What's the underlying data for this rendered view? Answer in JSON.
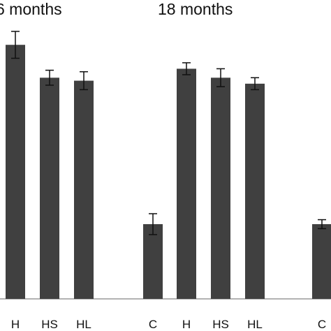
{
  "chart_data": {
    "type": "bar",
    "group_titles": [
      "6 months",
      "18 months"
    ],
    "categories": [
      "H",
      "HS",
      "HL",
      "C",
      "H",
      "HS",
      "HL",
      "C"
    ],
    "values": [
      85,
      74,
      73,
      25,
      77,
      74,
      72,
      25
    ],
    "errors": [
      4.5,
      2.5,
      3.0,
      3.5,
      2.0,
      3.0,
      2.0,
      1.5
    ],
    "ylim": [
      0,
      100
    ],
    "bar_color": "#404040",
    "axis_color": "#999999"
  }
}
